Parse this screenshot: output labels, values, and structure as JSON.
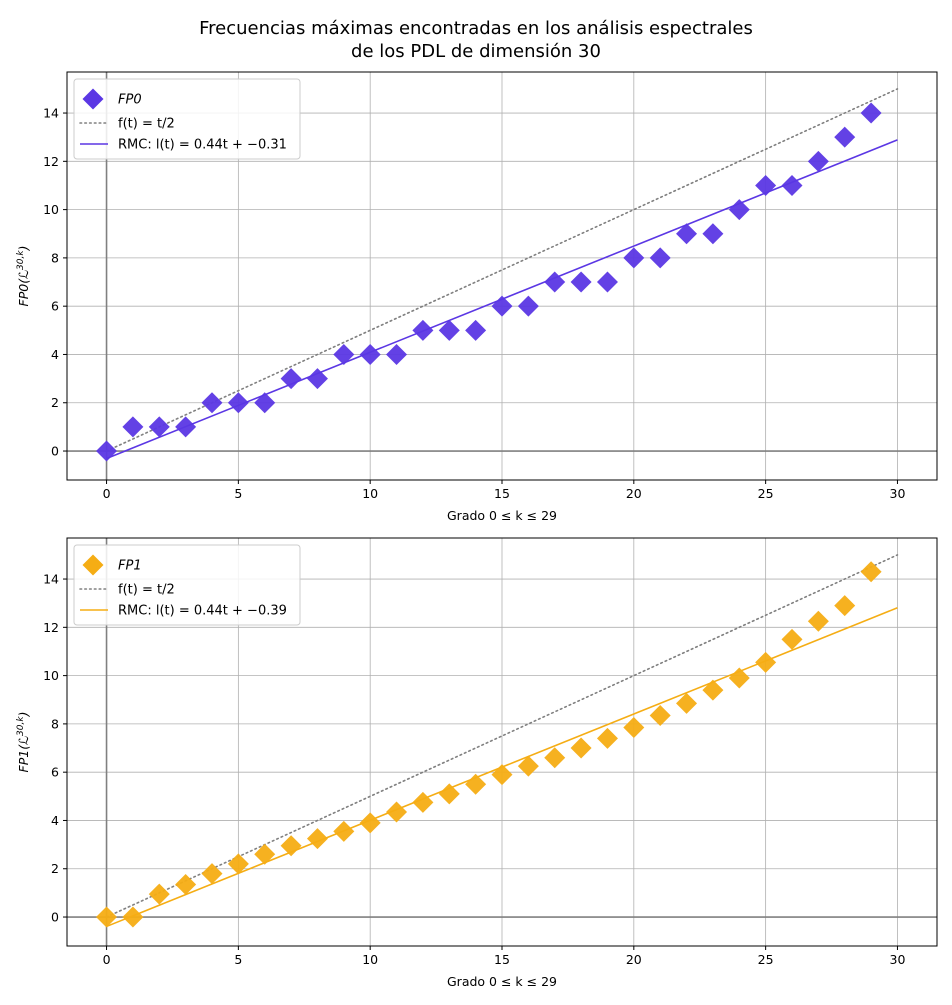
{
  "figure": {
    "title_line1": "Frecuencias máximas encontradas en los análisis espectrales",
    "title_line2": "de los PDL de dimensión 30"
  },
  "chart_data": [
    {
      "type": "scatter",
      "xlabel": "Grado 0 ≤ k ≤ 29",
      "ylabel": "FP0(ℒ^{30,k})",
      "xlim": [
        -1.5,
        31.5
      ],
      "ylim": [
        -1.2,
        15.7
      ],
      "xticks": [
        0,
        5,
        10,
        15,
        20,
        25,
        30
      ],
      "yticks": [
        0,
        2,
        4,
        6,
        8,
        10,
        12,
        14
      ],
      "grid": true,
      "legend_position": "top-left",
      "legend": [
        "FP0",
        "f(t) = t/2",
        "RMC: l(t) = 0.44t + −0.31"
      ],
      "color": "#5b37e4",
      "points": {
        "name": "FP0",
        "x": [
          0,
          1,
          2,
          3,
          4,
          5,
          6,
          7,
          8,
          9,
          10,
          11,
          12,
          13,
          14,
          15,
          16,
          17,
          18,
          19,
          20,
          21,
          22,
          23,
          24,
          25,
          26,
          27,
          28,
          29
        ],
        "y": [
          0,
          1,
          1,
          1,
          2,
          2,
          2,
          3,
          3,
          4,
          4,
          4,
          5,
          5,
          5,
          6,
          6,
          7,
          7,
          7,
          8,
          8,
          9,
          9,
          10,
          11,
          11,
          12,
          13,
          14
        ]
      },
      "reference_line": {
        "name": "f(t) = t/2",
        "slope": 0.5,
        "intercept": 0,
        "x_range": [
          0,
          30
        ],
        "color": "#808080"
      },
      "fit_line": {
        "name": "RMC: l(t) = 0.44t + −0.31",
        "slope": 0.44,
        "intercept": -0.31,
        "x_range": [
          0,
          30
        ]
      }
    },
    {
      "type": "scatter",
      "xlabel": "Grado 0 ≤ k ≤ 29",
      "ylabel": "FP1(ℒ^{30,k})",
      "xlim": [
        -1.5,
        31.5
      ],
      "ylim": [
        -1.2,
        15.7
      ],
      "xticks": [
        0,
        5,
        10,
        15,
        20,
        25,
        30
      ],
      "yticks": [
        0,
        2,
        4,
        6,
        8,
        10,
        12,
        14
      ],
      "grid": true,
      "legend_position": "top-left",
      "legend": [
        "FP1",
        "f(t) = t/2",
        "RMC: l(t) = 0.44t + −0.39"
      ],
      "color": "#f5ad14",
      "points": {
        "name": "FP1",
        "x": [
          0,
          1,
          2,
          3,
          4,
          5,
          6,
          7,
          8,
          9,
          10,
          11,
          12,
          13,
          14,
          15,
          16,
          17,
          18,
          19,
          20,
          21,
          22,
          23,
          24,
          25,
          26,
          27,
          28,
          29
        ],
        "y": [
          0,
          0,
          0.95,
          1.35,
          1.8,
          2.2,
          2.6,
          2.95,
          3.25,
          3.55,
          3.9,
          4.35,
          4.75,
          5.1,
          5.5,
          5.9,
          6.25,
          6.6,
          7.0,
          7.4,
          7.85,
          8.35,
          8.85,
          9.4,
          9.9,
          10.55,
          11.5,
          12.25,
          12.9,
          14.3
        ]
      },
      "reference_line": {
        "name": "f(t) = t/2",
        "slope": 0.5,
        "intercept": 0,
        "x_range": [
          0,
          30
        ],
        "color": "#808080"
      },
      "fit_line": {
        "name": "RMC: l(t) = 0.44t + −0.39",
        "slope": 0.44,
        "intercept": -0.39,
        "x_range": [
          0,
          30
        ]
      }
    }
  ]
}
